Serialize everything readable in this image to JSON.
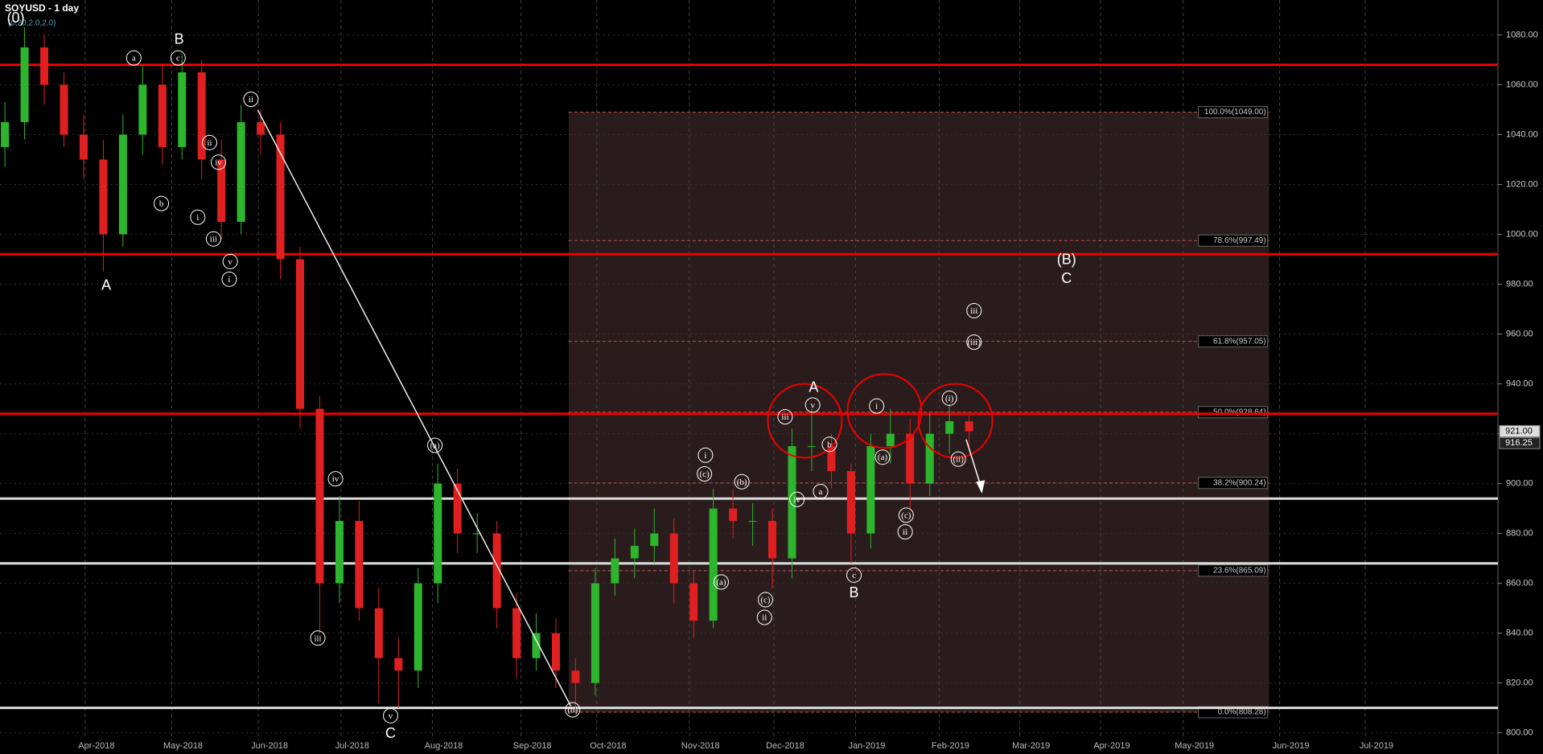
{
  "chart_data": {
    "type": "candlestick",
    "title": "SOYUSD - 1 day",
    "subtitle": "(0,20,2.0,2.0)",
    "open": [
      1035,
      1045,
      1075,
      1060,
      1040,
      1030,
      1000,
      1040,
      1060,
      1035,
      1065,
      1030,
      1005,
      1045,
      1040,
      990,
      930,
      860,
      885,
      850,
      830,
      825,
      860,
      900,
      880,
      880,
      850,
      830,
      840,
      825,
      820,
      860,
      870,
      875,
      880,
      860,
      845,
      890,
      885,
      885,
      870,
      915,
      915,
      905,
      880,
      915,
      920,
      900,
      920,
      925
    ],
    "high": [
      1053,
      1083,
      1080,
      1065,
      1048,
      1038,
      1048,
      1068,
      1068,
      1072,
      1070,
      1038,
      1052,
      1050,
      1045,
      995,
      935,
      895,
      893,
      858,
      838,
      866,
      908,
      906,
      888,
      885,
      856,
      848,
      846,
      830,
      866,
      878,
      882,
      890,
      886,
      865,
      898,
      898,
      892,
      890,
      922,
      930,
      920,
      908,
      920,
      930,
      926,
      928,
      932,
      928
    ],
    "low": [
      1027,
      1038,
      1052,
      1035,
      1022,
      985,
      995,
      1032,
      1028,
      1030,
      1022,
      998,
      1000,
      1032,
      982,
      922,
      840,
      852,
      845,
      812,
      810,
      818,
      852,
      872,
      872,
      842,
      822,
      825,
      818,
      808,
      815,
      855,
      862,
      868,
      852,
      838,
      842,
      878,
      875,
      858,
      862,
      905,
      898,
      868,
      874,
      908,
      890,
      895,
      912,
      915
    ],
    "close": [
      1045,
      1075,
      1060,
      1040,
      1030,
      1000,
      1040,
      1060,
      1035,
      1065,
      1030,
      1005,
      1045,
      1040,
      990,
      930,
      860,
      885,
      850,
      830,
      825,
      860,
      900,
      880,
      880,
      850,
      830,
      840,
      825,
      820,
      860,
      870,
      875,
      880,
      860,
      845,
      890,
      885,
      885,
      870,
      915,
      915,
      905,
      880,
      915,
      920,
      900,
      920,
      925,
      921
    ],
    "up_color": "#2db52d",
    "down_color": "#e02020",
    "ylim": [
      797,
      1094
    ],
    "yticks": [
      {
        "value": 800,
        "label": "800.00"
      },
      {
        "value": 820,
        "label": "820.00"
      },
      {
        "value": 840,
        "label": "840.00"
      },
      {
        "value": 860,
        "label": "860.00"
      },
      {
        "value": 880,
        "label": "880.00"
      },
      {
        "value": 900,
        "label": "900.00"
      },
      {
        "value": 920,
        "label": "920.00"
      },
      {
        "value": 940,
        "label": "940.00"
      },
      {
        "value": 960,
        "label": "960.00"
      },
      {
        "value": 980,
        "label": "980.00"
      },
      {
        "value": 1000,
        "label": "1000.00"
      },
      {
        "value": 1020,
        "label": "1020.00"
      },
      {
        "value": 1040,
        "label": "1040.00"
      },
      {
        "value": 1060,
        "label": "1060.00"
      },
      {
        "value": 1080,
        "label": "1080.00"
      }
    ],
    "x_labels": [
      "Apr-2018",
      "May-2018",
      "Jun-2018",
      "Jul-2018",
      "Aug-2018",
      "Sep-2018",
      "Oct-2018",
      "Nov-2018",
      "Dec-2018",
      "Jan-2019",
      "Feb-2019",
      "Mar-2019",
      "Apr-2019",
      "May-2019",
      "Jun-2019",
      "Jul-2019"
    ],
    "red_levels": [
      1068,
      992,
      928
    ],
    "white_levels": [
      894,
      868,
      810
    ],
    "fib_levels": [
      {
        "value": 1049,
        "label": "100.0%(1049.00)"
      },
      {
        "value": 997.49,
        "label": "78.6%(997.49)"
      },
      {
        "value": 957.05,
        "label": "61.8%(957.05)"
      },
      {
        "value": 928.64,
        "label": "50.0%(928.64)"
      },
      {
        "value": 900.24,
        "label": "38.2%(900.24)"
      },
      {
        "value": 865.09,
        "label": "23.6%(865.09)"
      },
      {
        "value": 808.28,
        "label": "0.0%(808.28)"
      }
    ],
    "price_tags": [
      {
        "value": 921,
        "label": "921.00"
      },
      {
        "value": 916.25,
        "label": "916.25"
      }
    ],
    "wave_labels": [
      "(0)",
      "A",
      "B",
      "a",
      "c",
      "ii",
      "ii",
      "iv",
      "b",
      "i",
      "iii",
      "v",
      "i",
      "iv",
      "iii",
      "v",
      "C",
      "(a)",
      "(b)",
      "i",
      "(c)",
      "(b)",
      "(a)",
      "(c)",
      "ii",
      "A",
      "iii",
      "v",
      "b",
      "a",
      "iv",
      "c",
      "B",
      "i",
      "(a)",
      "(c)",
      "ii",
      "(i)",
      "(ii)",
      "(B)",
      "C",
      "iii",
      "(iii)"
    ]
  }
}
